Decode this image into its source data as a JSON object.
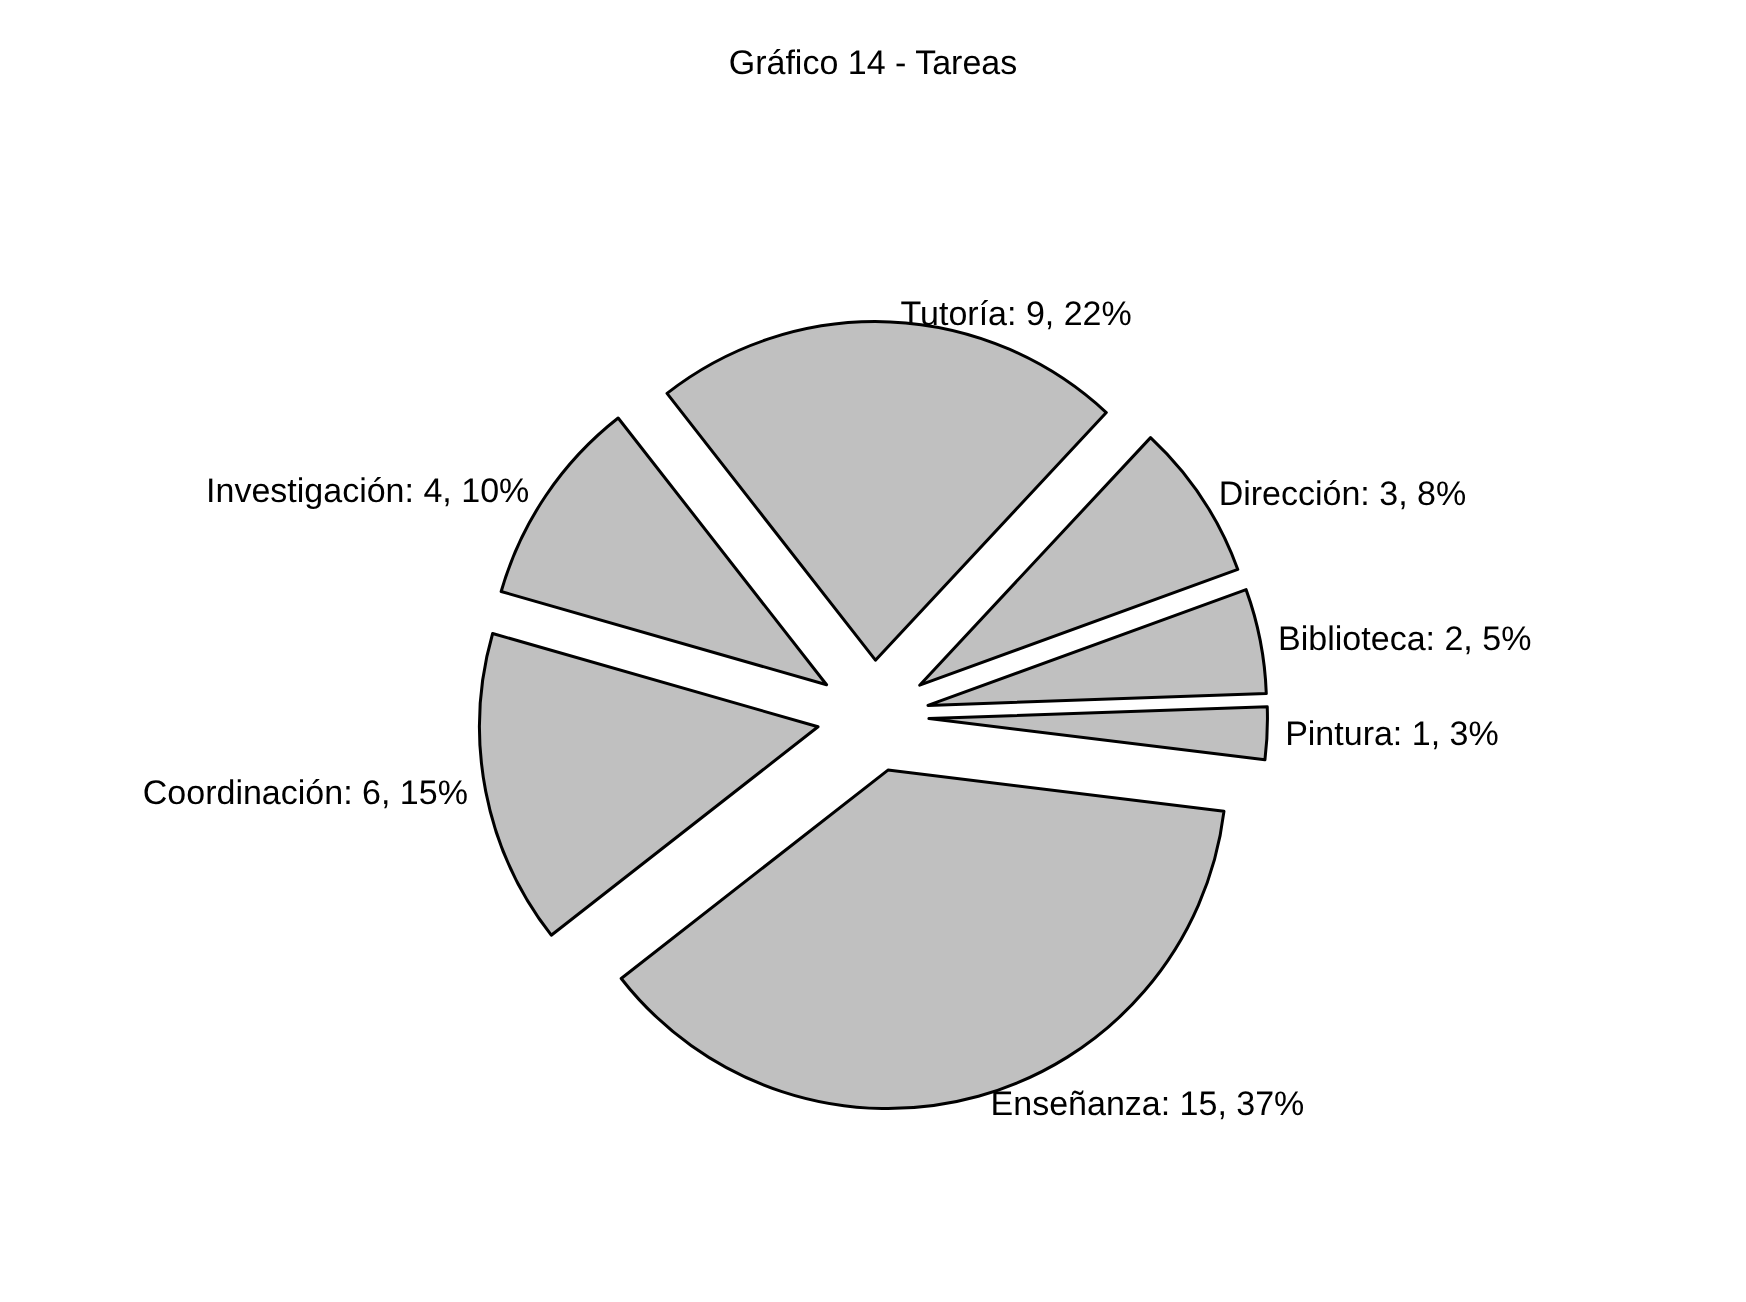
{
  "chart_data": {
    "type": "pie",
    "title": "Gráfico 14 - Tareas",
    "categories": [
      "Tutoría",
      "Dirección",
      "Biblioteca",
      "Pintura",
      "Enseñanza",
      "Coordinación",
      "Investigación"
    ],
    "values": [
      9,
      3,
      2,
      1,
      15,
      6,
      4
    ],
    "value_labels": [
      "9, 22%",
      "3, 8%",
      "2, 5%",
      "1, 3%",
      "15, 37%",
      "6, 15%",
      "4, 10%"
    ],
    "colors": [
      "#c0c0c0",
      "#c0c0c0",
      "#c0c0c0",
      "#c0c0c0",
      "#c0c0c0",
      "#c0c0c0",
      "#c0c0c0"
    ]
  }
}
